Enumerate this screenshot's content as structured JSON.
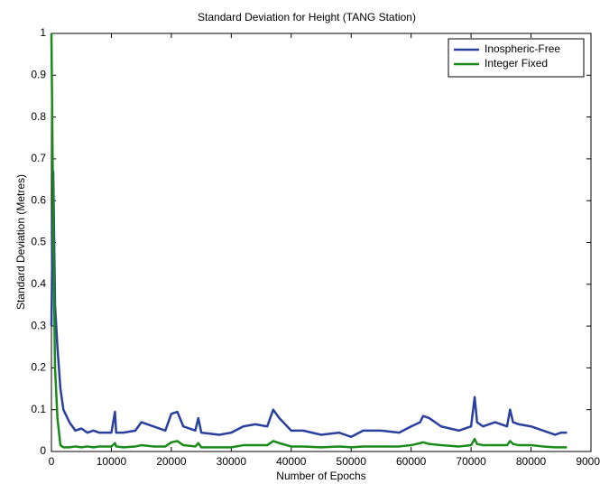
{
  "chart_data": {
    "type": "line",
    "title": "Standard Deviation for Height (TANG Station)",
    "x_label": "Number of Epochs",
    "y_label": "Standard Deviation (Metres)",
    "x": [
      0,
      300,
      600,
      1000,
      1500,
      2000,
      3000,
      4000,
      5000,
      6000,
      7000,
      8000,
      10000,
      10600,
      10800,
      12000,
      14000,
      15000,
      17000,
      19000,
      20000,
      21000,
      22000,
      24000,
      24500,
      25000,
      28000,
      30000,
      32000,
      34000,
      36000,
      37000,
      38000,
      40000,
      42000,
      45000,
      48000,
      50000,
      52000,
      55000,
      58000,
      60000,
      61500,
      62000,
      63000,
      65000,
      68000,
      70000,
      70600,
      71000,
      72000,
      74000,
      76000,
      76500,
      77000,
      78000,
      80000,
      82000,
      84000,
      85000,
      86000
    ],
    "series": [
      {
        "name": "Inospheric-Free",
        "color": "#2a3f9e",
        "values": [
          0.3,
          0.67,
          0.35,
          0.25,
          0.15,
          0.1,
          0.07,
          0.05,
          0.055,
          0.045,
          0.05,
          0.045,
          0.045,
          0.095,
          0.045,
          0.045,
          0.05,
          0.07,
          0.06,
          0.05,
          0.09,
          0.095,
          0.06,
          0.05,
          0.08,
          0.045,
          0.04,
          0.045,
          0.06,
          0.065,
          0.06,
          0.1,
          0.08,
          0.05,
          0.05,
          0.04,
          0.045,
          0.035,
          0.05,
          0.05,
          0.045,
          0.06,
          0.07,
          0.085,
          0.08,
          0.06,
          0.05,
          0.06,
          0.13,
          0.07,
          0.06,
          0.07,
          0.06,
          0.1,
          0.07,
          0.065,
          0.06,
          0.05,
          0.04,
          0.045,
          0.045
        ]
      },
      {
        "name": "Integer Fixed",
        "color": "#1a8a1a",
        "values": [
          1.0,
          0.55,
          0.2,
          0.08,
          0.015,
          0.01,
          0.01,
          0.012,
          0.01,
          0.012,
          0.01,
          0.012,
          0.012,
          0.02,
          0.012,
          0.01,
          0.012,
          0.015,
          0.012,
          0.012,
          0.022,
          0.025,
          0.015,
          0.012,
          0.02,
          0.01,
          0.01,
          0.01,
          0.015,
          0.015,
          0.015,
          0.025,
          0.02,
          0.012,
          0.012,
          0.01,
          0.012,
          0.01,
          0.012,
          0.012,
          0.012,
          0.015,
          0.02,
          0.022,
          0.018,
          0.015,
          0.012,
          0.015,
          0.03,
          0.018,
          0.015,
          0.015,
          0.015,
          0.025,
          0.018,
          0.015,
          0.015,
          0.012,
          0.01,
          0.01,
          0.01
        ]
      }
    ],
    "xlim": [
      0,
      90000
    ],
    "ylim": [
      0,
      1
    ],
    "xticks": [
      0,
      10000,
      20000,
      30000,
      40000,
      50000,
      60000,
      70000,
      80000,
      90000
    ],
    "yticks": [
      0,
      0.1,
      0.2,
      0.3,
      0.4,
      0.5,
      0.6,
      0.7,
      0.8,
      0.9,
      1
    ],
    "grid": false,
    "legend": "top-right"
  }
}
